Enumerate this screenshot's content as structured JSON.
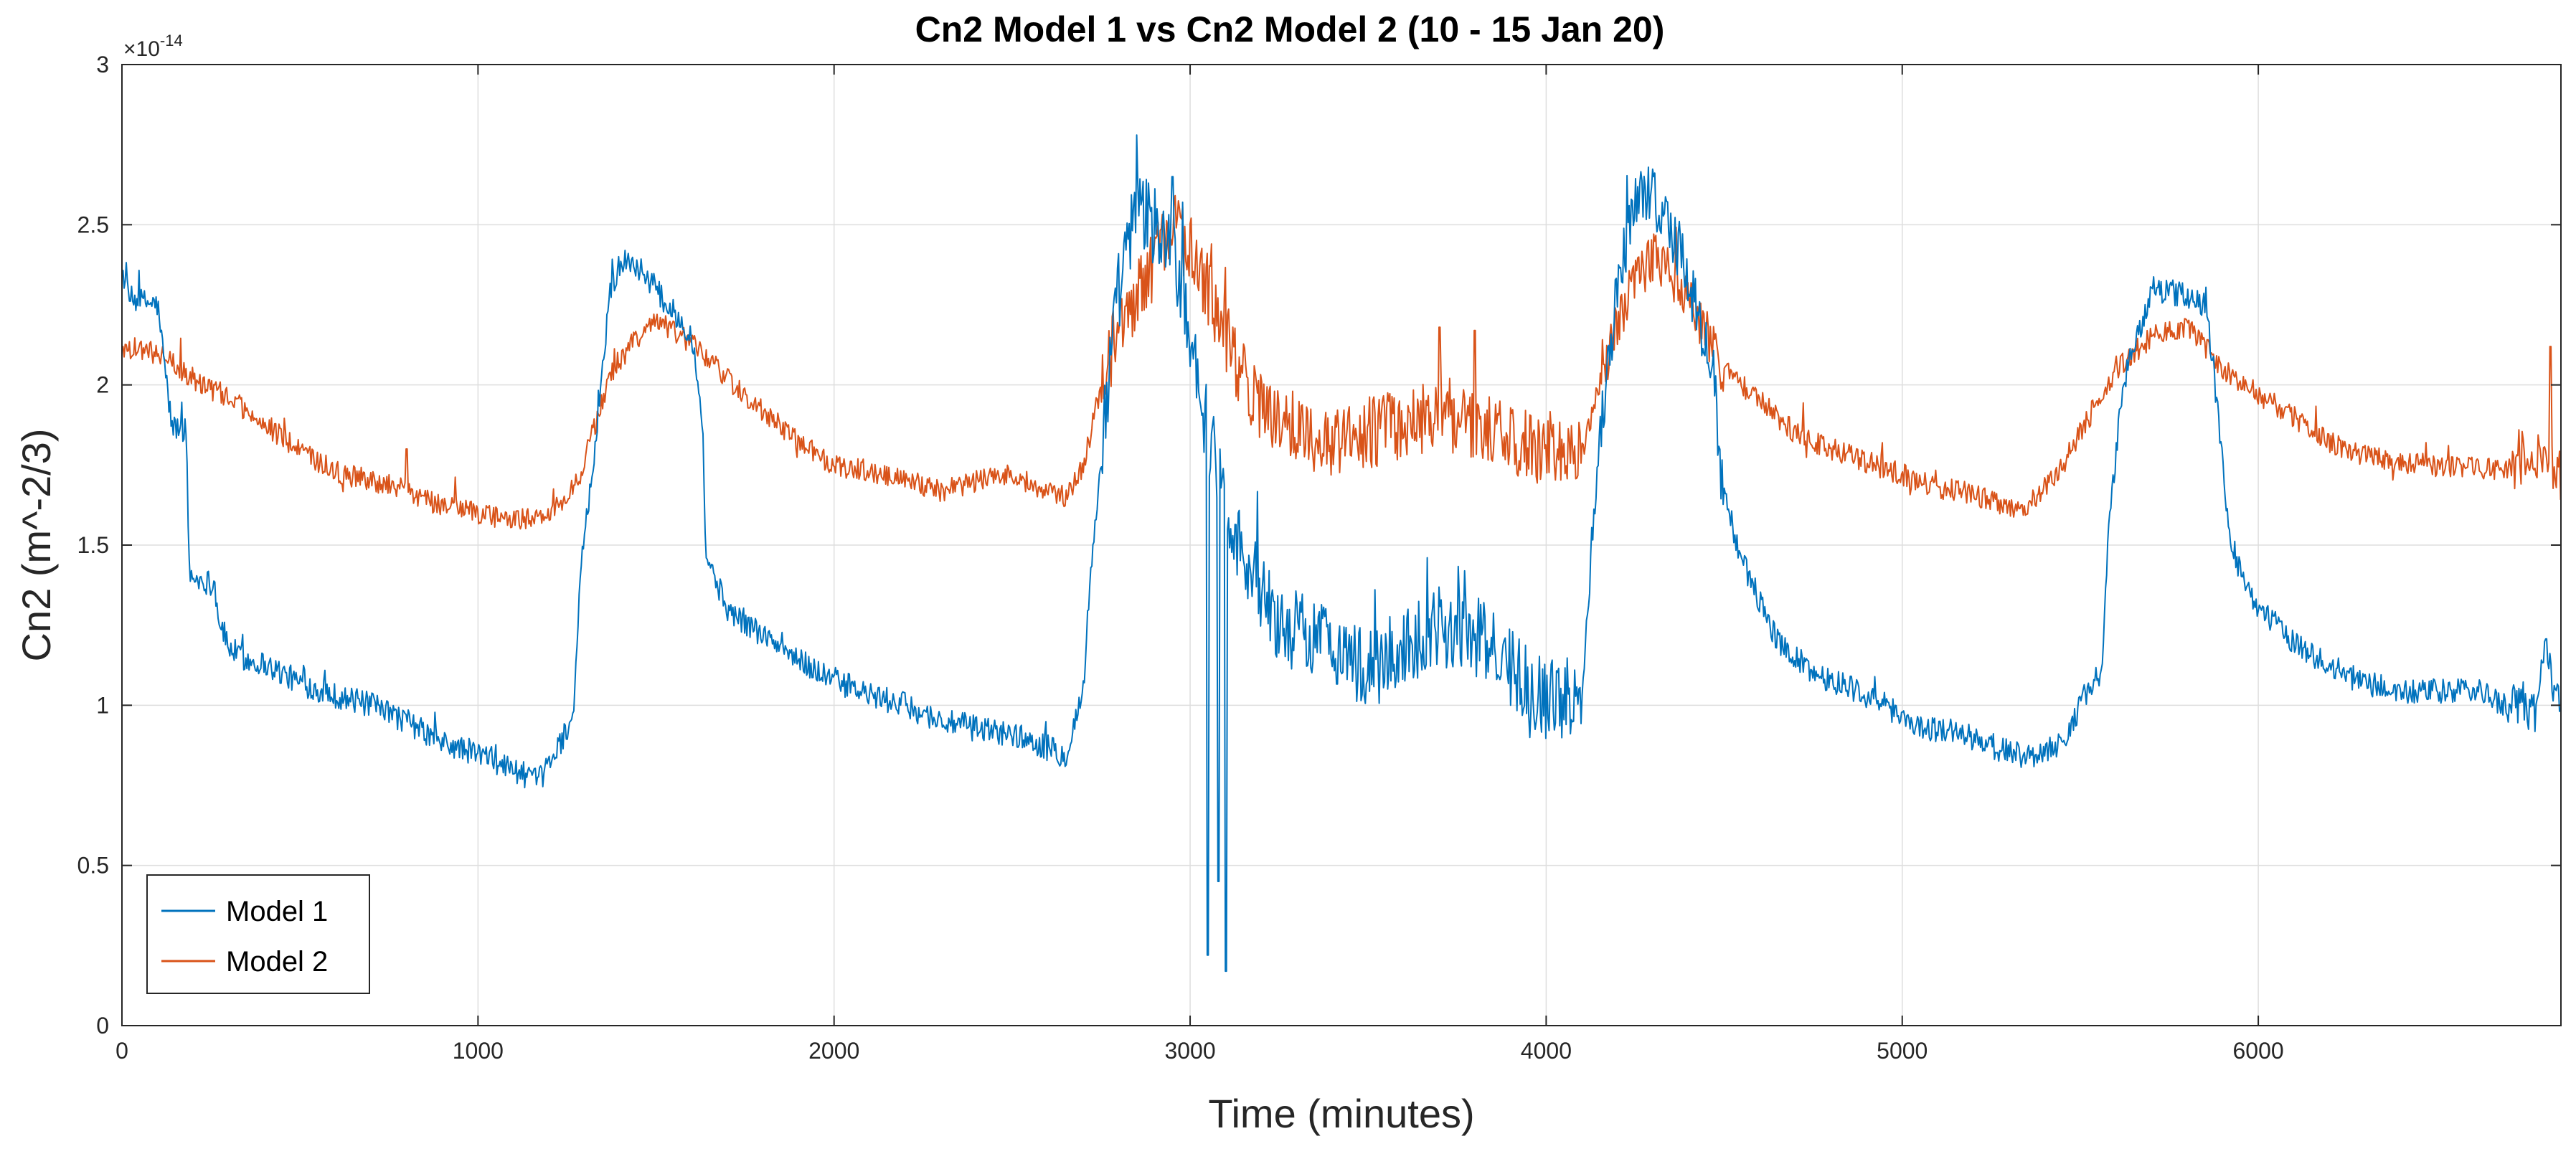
{
  "chart_data": {
    "type": "line",
    "title": "Cn2 Model 1 vs Cn2 Model 2 (10 - 15 Jan 20)",
    "xlabel": "Time (minutes)",
    "ylabel": "Cn2 (m^-2/3)",
    "xlim": [
      0,
      6850
    ],
    "ylim": [
      0,
      3
    ],
    "y_multiplier_base": "×10",
    "y_multiplier_exponent": "-14",
    "grid": true,
    "legend_position": "bottom-left",
    "x_ticks": [
      0,
      1000,
      2000,
      3000,
      4000,
      5000,
      6000
    ],
    "x_tick_labels": [
      "0",
      "1000",
      "2000",
      "3000",
      "4000",
      "5000",
      "6000"
    ],
    "y_ticks": [
      0,
      0.5,
      1,
      1.5,
      2,
      2.5,
      3
    ],
    "y_tick_labels": [
      "0",
      "0.5",
      "1",
      "1.5",
      "2",
      "2.5",
      "3"
    ],
    "series": [
      {
        "name": "Model 1",
        "color": "#0072BD",
        "noise": 0.04,
        "spikes": [
          [
            3050,
            0.22
          ],
          [
            3100,
            0.17
          ],
          [
            3080,
            0.45
          ],
          [
            2950,
            2.65
          ],
          [
            2850,
            2.78
          ]
        ],
        "points": [
          [
            0,
            2.36
          ],
          [
            20,
            2.27
          ],
          [
            100,
            2.25
          ],
          [
            120,
            2.06
          ],
          [
            140,
            1.87
          ],
          [
            180,
            1.86
          ],
          [
            190,
            1.4
          ],
          [
            260,
            1.38
          ],
          [
            270,
            1.28
          ],
          [
            300,
            1.18
          ],
          [
            350,
            1.14
          ],
          [
            400,
            1.13
          ],
          [
            500,
            1.07
          ],
          [
            600,
            1.03
          ],
          [
            700,
            1.0
          ],
          [
            800,
            0.95
          ],
          [
            900,
            0.88
          ],
          [
            1000,
            0.85
          ],
          [
            1100,
            0.8
          ],
          [
            1170,
            0.76
          ],
          [
            1230,
            0.88
          ],
          [
            1270,
            0.98
          ],
          [
            1290,
            1.45
          ],
          [
            1330,
            1.8
          ],
          [
            1370,
            2.3
          ],
          [
            1420,
            2.4
          ],
          [
            1480,
            2.33
          ],
          [
            1530,
            2.25
          ],
          [
            1600,
            2.16
          ],
          [
            1630,
            1.9
          ],
          [
            1640,
            1.47
          ],
          [
            1700,
            1.3
          ],
          [
            1800,
            1.22
          ],
          [
            1900,
            1.14
          ],
          [
            2000,
            1.08
          ],
          [
            2100,
            1.03
          ],
          [
            2200,
            1.0
          ],
          [
            2300,
            0.95
          ],
          [
            2400,
            0.93
          ],
          [
            2500,
            0.91
          ],
          [
            2600,
            0.87
          ],
          [
            2650,
            0.84
          ],
          [
            2700,
            1.05
          ],
          [
            2720,
            1.4
          ],
          [
            2760,
            1.9
          ],
          [
            2800,
            2.3
          ],
          [
            2850,
            2.55
          ],
          [
            2900,
            2.5
          ],
          [
            2950,
            2.42
          ],
          [
            3000,
            2.18
          ],
          [
            3040,
            1.9
          ],
          [
            3100,
            1.65
          ],
          [
            3150,
            1.45
          ],
          [
            3250,
            1.25
          ],
          [
            3400,
            1.2
          ],
          [
            3500,
            1.1
          ],
          [
            3600,
            1.18
          ],
          [
            3700,
            1.25
          ],
          [
            3800,
            1.22
          ],
          [
            3900,
            1.12
          ],
          [
            4000,
            1.02
          ],
          [
            4100,
            1.03
          ],
          [
            4120,
            1.35
          ],
          [
            4150,
            1.85
          ],
          [
            4200,
            2.3
          ],
          [
            4250,
            2.6
          ],
          [
            4300,
            2.6
          ],
          [
            4380,
            2.4
          ],
          [
            4430,
            2.2
          ],
          [
            4470,
            2.05
          ],
          [
            4490,
            1.7
          ],
          [
            4550,
            1.45
          ],
          [
            4650,
            1.2
          ],
          [
            4750,
            1.1
          ],
          [
            4850,
            1.06
          ],
          [
            4950,
            1.0
          ],
          [
            5050,
            0.93
          ],
          [
            5150,
            0.92
          ],
          [
            5250,
            0.87
          ],
          [
            5350,
            0.84
          ],
          [
            5450,
            0.88
          ],
          [
            5520,
            1.05
          ],
          [
            5560,
            1.1
          ],
          [
            5580,
            1.55
          ],
          [
            5620,
            2.0
          ],
          [
            5700,
            2.3
          ],
          [
            5800,
            2.28
          ],
          [
            5850,
            2.25
          ],
          [
            5870,
            2.1
          ],
          [
            5900,
            1.75
          ],
          [
            5920,
            1.5
          ],
          [
            6000,
            1.3
          ],
          [
            6100,
            1.2
          ],
          [
            6200,
            1.12
          ],
          [
            6300,
            1.07
          ],
          [
            6400,
            1.04
          ],
          [
            6500,
            1.04
          ],
          [
            6600,
            1.05
          ],
          [
            6700,
            1.0
          ],
          [
            6780,
            0.98
          ],
          [
            6800,
            1.15
          ],
          [
            6850,
            1.05
          ]
        ]
      },
      {
        "name": "Model 2",
        "color": "#D95319",
        "noise": 0.035,
        "spikes": [
          [
            800,
            1.8
          ],
          [
            3700,
            2.18
          ],
          [
            3800,
            2.17
          ],
          [
            6820,
            2.12
          ]
        ],
        "points": [
          [
            0,
            2.12
          ],
          [
            100,
            2.1
          ],
          [
            200,
            2.02
          ],
          [
            300,
            1.96
          ],
          [
            400,
            1.88
          ],
          [
            500,
            1.79
          ],
          [
            600,
            1.73
          ],
          [
            700,
            1.7
          ],
          [
            800,
            1.67
          ],
          [
            900,
            1.62
          ],
          [
            1000,
            1.6
          ],
          [
            1100,
            1.58
          ],
          [
            1200,
            1.59
          ],
          [
            1280,
            1.7
          ],
          [
            1330,
            1.88
          ],
          [
            1380,
            2.05
          ],
          [
            1450,
            2.15
          ],
          [
            1500,
            2.2
          ],
          [
            1600,
            2.13
          ],
          [
            1700,
            2.02
          ],
          [
            1800,
            1.92
          ],
          [
            1900,
            1.82
          ],
          [
            2000,
            1.75
          ],
          [
            2100,
            1.73
          ],
          [
            2200,
            1.7
          ],
          [
            2300,
            1.67
          ],
          [
            2400,
            1.7
          ],
          [
            2500,
            1.72
          ],
          [
            2600,
            1.67
          ],
          [
            2650,
            1.65
          ],
          [
            2700,
            1.75
          ],
          [
            2750,
            2.0
          ],
          [
            2800,
            2.18
          ],
          [
            2850,
            2.28
          ],
          [
            2900,
            2.38
          ],
          [
            2950,
            2.5
          ],
          [
            3000,
            2.42
          ],
          [
            3050,
            2.3
          ],
          [
            3100,
            2.15
          ],
          [
            3150,
            2.02
          ],
          [
            3200,
            1.93
          ],
          [
            3300,
            1.86
          ],
          [
            3400,
            1.82
          ],
          [
            3500,
            1.85
          ],
          [
            3600,
            1.88
          ],
          [
            3700,
            1.9
          ],
          [
            3800,
            1.88
          ],
          [
            3900,
            1.84
          ],
          [
            4000,
            1.78
          ],
          [
            4100,
            1.78
          ],
          [
            4150,
            2.0
          ],
          [
            4200,
            2.2
          ],
          [
            4250,
            2.33
          ],
          [
            4300,
            2.4
          ],
          [
            4350,
            2.35
          ],
          [
            4400,
            2.25
          ],
          [
            4450,
            2.15
          ],
          [
            4500,
            2.05
          ],
          [
            4600,
            1.95
          ],
          [
            4700,
            1.85
          ],
          [
            4800,
            1.8
          ],
          [
            4900,
            1.76
          ],
          [
            5000,
            1.72
          ],
          [
            5100,
            1.68
          ],
          [
            5200,
            1.66
          ],
          [
            5300,
            1.61
          ],
          [
            5350,
            1.62
          ],
          [
            5400,
            1.68
          ],
          [
            5450,
            1.75
          ],
          [
            5500,
            1.85
          ],
          [
            5550,
            1.95
          ],
          [
            5600,
            2.05
          ],
          [
            5700,
            2.15
          ],
          [
            5800,
            2.18
          ],
          [
            5850,
            2.12
          ],
          [
            5900,
            2.05
          ],
          [
            6000,
            1.97
          ],
          [
            6100,
            1.9
          ],
          [
            6200,
            1.82
          ],
          [
            6300,
            1.78
          ],
          [
            6400,
            1.76
          ],
          [
            6500,
            1.75
          ],
          [
            6600,
            1.74
          ],
          [
            6700,
            1.74
          ],
          [
            6800,
            1.78
          ],
          [
            6850,
            1.72
          ]
        ]
      }
    ]
  }
}
